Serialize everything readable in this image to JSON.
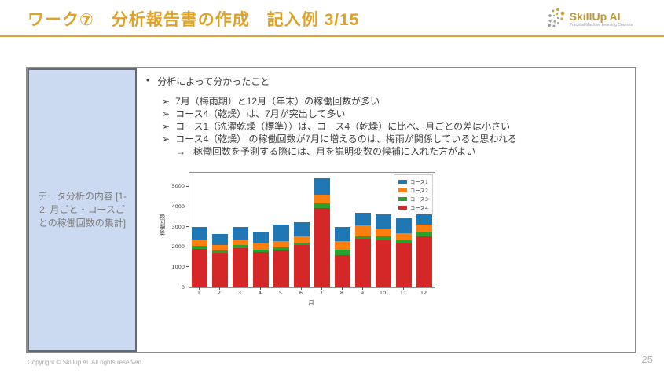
{
  "header": {
    "title": "ワーク⑦　分析報告書の作成　記入例 3/15",
    "logo": {
      "name": "SkillUp AI",
      "tagline": "Practical Machine Learning Courses"
    }
  },
  "colors": {
    "accent_gold": "#dfa228",
    "left_cell_blue": "#cbd9f1",
    "table_border_gray": "#8c8c8c"
  },
  "table": {
    "left_cell_label": "データ分析の内容 [1-2. 月ごと・コースごとの稼働回数の集計]"
  },
  "findings": {
    "bullet_char": "•",
    "sub_bullet_char": "➢",
    "arrow_char": "→",
    "heading": "分析によって分かったこと",
    "bullets": [
      "7月（梅雨期）と12月（年末）の稼働回数が多い",
      "コース4（乾燥）は、7月が突出して多い",
      "コース1（洗濯乾燥（標準））は、コース4（乾燥）に比べ、月ごとの差は小さい",
      "コース4（乾燥） の稼働回数が7月に増えるのは、梅雨が関係していると思われる"
    ],
    "arrow_note": "稼働回数を予測する際には、月を説明変数の候補に入れた方がよい"
  },
  "chart_data": {
    "type": "bar",
    "stacked": true,
    "title": "",
    "xlabel": "月",
    "ylabel": "稼働回数",
    "categories": [
      "1",
      "2",
      "3",
      "4",
      "5",
      "6",
      "7",
      "8",
      "9",
      "10",
      "11",
      "12"
    ],
    "series": [
      {
        "name": "コース1",
        "color": "#1f77b4",
        "values": [
          630,
          550,
          600,
          550,
          840,
          740,
          800,
          710,
          640,
          680,
          750,
          820
        ]
      },
      {
        "name": "コース2",
        "color": "#ff7f0e",
        "values": [
          290,
          280,
          280,
          300,
          280,
          290,
          460,
          430,
          520,
          400,
          340,
          390
        ]
      },
      {
        "name": "コース3",
        "color": "#2ca02c",
        "values": [
          180,
          120,
          170,
          130,
          160,
          130,
          210,
          260,
          130,
          190,
          140,
          210
        ]
      },
      {
        "name": "コース4",
        "color": "#d62728",
        "values": [
          1900,
          1700,
          1950,
          1750,
          1850,
          2100,
          3950,
          1620,
          2420,
          2350,
          2220,
          2540
        ]
      }
    ],
    "stack_order_bottom_to_top": [
      "コース4",
      "コース3",
      "コース2",
      "コース1"
    ],
    "ylim": [
      0,
      5700
    ],
    "yticks": [
      0,
      1000,
      2000,
      3000,
      4000,
      5000
    ],
    "legend_position": "upper right",
    "grid": false
  },
  "footer": {
    "copyright": "Copyright © Skillup Ai. All rights reserved.",
    "page_number": "25"
  }
}
